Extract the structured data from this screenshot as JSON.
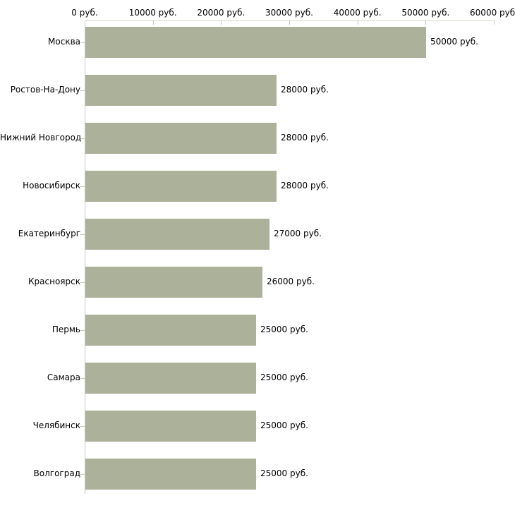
{
  "chart_data": {
    "type": "bar",
    "orientation": "horizontal",
    "title": "",
    "xlabel": "",
    "ylabel": "",
    "unit_suffix": " руб.",
    "categories": [
      "Москва",
      "Ростов-На-Дону",
      "Нижний Новгород",
      "Новосибирск",
      "Екатеринбург",
      "Красноярск",
      "Пермь",
      "Самара",
      "Челябинск",
      "Волгоград"
    ],
    "values": [
      50000,
      28000,
      28000,
      28000,
      27000,
      26000,
      25000,
      25000,
      25000,
      25000
    ],
    "value_labels": [
      "50000 руб.",
      "28000 руб.",
      "28000 руб.",
      "28000 руб.",
      "27000 руб.",
      "26000 руб.",
      "25000 руб.",
      "25000 руб.",
      "25000 руб.",
      "25000 руб."
    ],
    "x_axis": {
      "position": "top",
      "min": 0,
      "max": 60000,
      "ticks": [
        0,
        10000,
        20000,
        30000,
        40000,
        50000,
        60000
      ],
      "tick_labels": [
        "0 руб.",
        "10000 руб.",
        "20000 руб.",
        "30000 руб.",
        "40000 руб.",
        "50000 руб.",
        "60000 руб."
      ]
    },
    "grid": false,
    "legend": false,
    "colors": {
      "bar": "#acb199",
      "axis_line": "#d9dbc7",
      "axis_tick": "#c3c7ab",
      "category_tick": "#c9ccb8",
      "baseline": "#c9c9c9",
      "text": "#000000",
      "background": "#ffffff"
    }
  }
}
